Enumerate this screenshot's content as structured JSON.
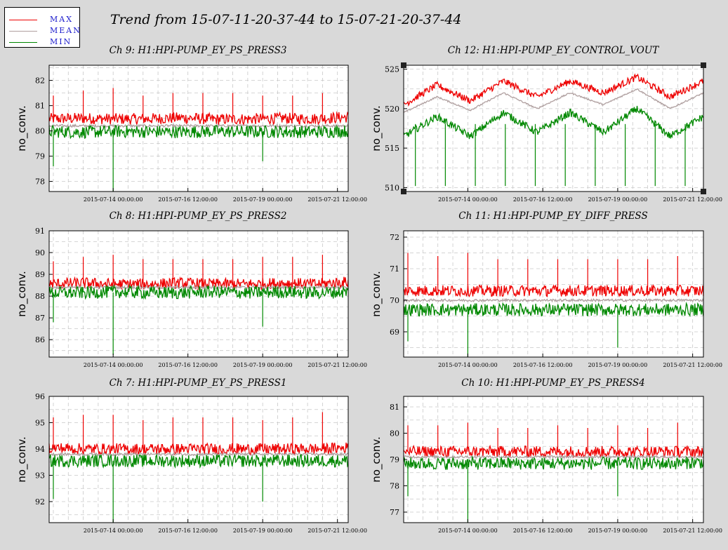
{
  "title": "Trend from 15-07-11-20-37-44 to 15-07-21-20-37-44",
  "legend": [
    {
      "label": "MAX",
      "color": "#ee0000"
    },
    {
      "label": "MEAN",
      "color": "#b0a0a0"
    },
    {
      "label": "MIN",
      "color": "#008800"
    }
  ],
  "colors": {
    "max": "#ee0000",
    "mean": "#b0a0a0",
    "min": "#008800",
    "plot_bg": "#ffffff",
    "page_bg": "#d9d9d9",
    "grid": "#c8c8c8"
  },
  "chart_data": [
    {
      "type": "line",
      "title": "Ch 9: H1:HPI-PUMP_EY_PS_PRESS3",
      "ylabel": "no_conv.",
      "xlim": [
        "2015-07-11 20:37:44",
        "2015-07-21 20:37:44"
      ],
      "ylim": [
        77.6,
        82.6
      ],
      "yticks": [
        "78",
        "79",
        "80",
        "81",
        "82"
      ],
      "xticks": [
        "2015-07-14 00:00:00",
        "2015-07-16 12:00:00",
        "2015-07-19 00:00:00",
        "2015-07-21 12:00:00"
      ],
      "series": [
        {
          "name": "MAX",
          "values": [
            80.48,
            80.5,
            80.47,
            80.48,
            80.52,
            80.46,
            80.47,
            80.5,
            80.48,
            80.55
          ]
        },
        {
          "name": "MEAN",
          "values": [
            80.2,
            80.2,
            80.2,
            80.2,
            80.2,
            80.2,
            80.2,
            80.2,
            80.2,
            80.2
          ]
        },
        {
          "name": "MIN",
          "values": [
            79.98,
            79.95,
            79.98,
            79.97,
            79.96,
            79.98,
            79.97,
            79.97,
            79.96,
            80.0
          ]
        }
      ],
      "spikes": [
        {
          "x": "2015-07-12 00:00:00",
          "series": "MAX",
          "value": 81.4
        },
        {
          "x": "2015-07-12 00:00:00",
          "series": "MIN",
          "value": 78.6
        },
        {
          "x": "2015-07-13 00:00:00",
          "series": "MAX",
          "value": 81.6
        },
        {
          "x": "2015-07-14 00:00:00",
          "series": "MAX",
          "value": 81.7
        },
        {
          "x": "2015-07-14 00:00:00",
          "series": "MIN",
          "value": 77.6
        },
        {
          "x": "2015-07-15 00:00:00",
          "series": "MAX",
          "value": 81.4
        },
        {
          "x": "2015-07-16 00:00:00",
          "series": "MAX",
          "value": 81.5
        },
        {
          "x": "2015-07-17 00:00:00",
          "series": "MAX",
          "value": 81.5
        },
        {
          "x": "2015-07-18 00:00:00",
          "series": "MAX",
          "value": 81.5
        },
        {
          "x": "2015-07-19 00:00:00",
          "series": "MAX",
          "value": 81.4
        },
        {
          "x": "2015-07-19 00:00:00",
          "series": "MIN",
          "value": 78.8
        },
        {
          "x": "2015-07-20 00:00:00",
          "series": "MAX",
          "value": 81.4
        },
        {
          "x": "2015-07-21 00:00:00",
          "series": "MAX",
          "value": 81.5
        }
      ]
    },
    {
      "type": "line",
      "title": "Ch 12: H1:HPI-PUMP_EY_CONTROL_VOUT",
      "ylabel": "no_conv.",
      "xlim": [
        "2015-07-11 20:37:44",
        "2015-07-21 20:37:44"
      ],
      "ylim": [
        509.5,
        525.5
      ],
      "yticks": [
        "510",
        "515",
        "520",
        "525"
      ],
      "xticks": [
        "2015-07-14 00:00:00",
        "2015-07-16 12:00:00",
        "2015-07-19 00:00:00",
        "2015-07-21 12:00:00"
      ],
      "series": [
        {
          "name": "MAX",
          "values": [
            520.5,
            523.0,
            521.0,
            523.5,
            521.5,
            523.5,
            522.0,
            524.0,
            521.5,
            523.5
          ]
        },
        {
          "name": "MEAN",
          "values": [
            519.5,
            521.5,
            519.8,
            522.0,
            520.0,
            522.0,
            520.5,
            522.5,
            520.0,
            522.0
          ]
        },
        {
          "name": "MIN",
          "values": [
            516.5,
            519.0,
            516.5,
            519.5,
            517.0,
            519.5,
            517.0,
            520.0,
            516.5,
            519.0
          ]
        }
      ],
      "spikes": [
        {
          "x": "2015-07-12 06:00:00",
          "series": "MIN",
          "value": 510.2
        },
        {
          "x": "2015-07-13 06:00:00",
          "series": "MIN",
          "value": 510.2
        },
        {
          "x": "2015-07-14 06:00:00",
          "series": "MIN",
          "value": 510.2
        },
        {
          "x": "2015-07-15 06:00:00",
          "series": "MIN",
          "value": 510.2
        },
        {
          "x": "2015-07-16 06:00:00",
          "series": "MIN",
          "value": 510.2
        },
        {
          "x": "2015-07-17 06:00:00",
          "series": "MIN",
          "value": 510.2
        },
        {
          "x": "2015-07-18 06:00:00",
          "series": "MIN",
          "value": 510.2
        },
        {
          "x": "2015-07-19 06:00:00",
          "series": "MIN",
          "value": 510.2
        },
        {
          "x": "2015-07-20 06:00:00",
          "series": "MIN",
          "value": 510.2
        },
        {
          "x": "2015-07-21 06:00:00",
          "series": "MIN",
          "value": 510.2
        }
      ]
    },
    {
      "type": "line",
      "title": "Ch 8: H1:HPI-PUMP_EY_PS_PRESS2",
      "ylabel": "no_conv.",
      "xlim": [
        "2015-07-11 20:37:44",
        "2015-07-21 20:37:44"
      ],
      "ylim": [
        85.2,
        91.0
      ],
      "yticks": [
        "86",
        "87",
        "88",
        "89",
        "90",
        "91"
      ],
      "xticks": [
        "2015-07-14 00:00:00",
        "2015-07-16 12:00:00",
        "2015-07-19 00:00:00",
        "2015-07-21 12:00:00"
      ],
      "series": [
        {
          "name": "MAX",
          "values": [
            88.55,
            88.6,
            88.55,
            88.55,
            88.6,
            88.55,
            88.55,
            88.6,
            88.55,
            88.65
          ]
        },
        {
          "name": "MEAN",
          "values": [
            88.4,
            88.4,
            88.4,
            88.4,
            88.4,
            88.4,
            88.4,
            88.4,
            88.4,
            88.4
          ]
        },
        {
          "name": "MIN",
          "values": [
            88.15,
            88.15,
            88.2,
            88.15,
            88.15,
            88.2,
            88.15,
            88.2,
            88.15,
            88.2
          ]
        }
      ],
      "spikes": [
        {
          "x": "2015-07-12 00:00:00",
          "series": "MAX",
          "value": 89.6
        },
        {
          "x": "2015-07-12 00:00:00",
          "series": "MIN",
          "value": 86.8
        },
        {
          "x": "2015-07-13 00:00:00",
          "series": "MAX",
          "value": 89.8
        },
        {
          "x": "2015-07-14 00:00:00",
          "series": "MAX",
          "value": 89.9
        },
        {
          "x": "2015-07-14 00:00:00",
          "series": "MIN",
          "value": 85.3
        },
        {
          "x": "2015-07-15 00:00:00",
          "series": "MAX",
          "value": 89.7
        },
        {
          "x": "2015-07-16 00:00:00",
          "series": "MAX",
          "value": 89.7
        },
        {
          "x": "2015-07-17 00:00:00",
          "series": "MAX",
          "value": 89.7
        },
        {
          "x": "2015-07-18 00:00:00",
          "series": "MAX",
          "value": 89.7
        },
        {
          "x": "2015-07-19 00:00:00",
          "series": "MAX",
          "value": 89.8
        },
        {
          "x": "2015-07-19 00:00:00",
          "series": "MIN",
          "value": 86.6
        },
        {
          "x": "2015-07-20 00:00:00",
          "series": "MAX",
          "value": 89.8
        },
        {
          "x": "2015-07-21 00:00:00",
          "series": "MAX",
          "value": 89.9
        }
      ]
    },
    {
      "type": "line",
      "title": "Ch 11: H1:HPI-PUMP_EY_DIFF_PRESS",
      "ylabel": "no_conv.",
      "xlim": [
        "2015-07-11 20:37:44",
        "2015-07-21 20:37:44"
      ],
      "ylim": [
        68.2,
        72.2
      ],
      "yticks": [
        "69",
        "70",
        "71",
        "72"
      ],
      "xticks": [
        "2015-07-14 00:00:00",
        "2015-07-16 12:00:00",
        "2015-07-19 00:00:00",
        "2015-07-21 12:00:00"
      ],
      "series": [
        {
          "name": "MAX",
          "values": [
            70.3,
            70.3,
            70.3,
            70.3,
            70.3,
            70.3,
            70.3,
            70.3,
            70.3,
            70.3
          ]
        },
        {
          "name": "MEAN",
          "values": [
            70.0,
            70.0,
            70.0,
            70.0,
            70.0,
            70.0,
            70.0,
            70.0,
            70.0,
            70.0
          ]
        },
        {
          "name": "MIN",
          "values": [
            69.7,
            69.7,
            69.7,
            69.7,
            69.7,
            69.7,
            69.7,
            69.7,
            69.7,
            69.7
          ]
        }
      ],
      "spikes": [
        {
          "x": "2015-07-12 00:00:00",
          "series": "MAX",
          "value": 71.5
        },
        {
          "x": "2015-07-12 00:00:00",
          "series": "MIN",
          "value": 68.7
        },
        {
          "x": "2015-07-13 00:00:00",
          "series": "MAX",
          "value": 71.4
        },
        {
          "x": "2015-07-14 00:00:00",
          "series": "MAX",
          "value": 71.5
        },
        {
          "x": "2015-07-14 00:00:00",
          "series": "MIN",
          "value": 68.2
        },
        {
          "x": "2015-07-15 00:00:00",
          "series": "MAX",
          "value": 71.3
        },
        {
          "x": "2015-07-16 00:00:00",
          "series": "MAX",
          "value": 71.3
        },
        {
          "x": "2015-07-17 00:00:00",
          "series": "MAX",
          "value": 71.3
        },
        {
          "x": "2015-07-18 00:00:00",
          "series": "MAX",
          "value": 71.3
        },
        {
          "x": "2015-07-19 00:00:00",
          "series": "MAX",
          "value": 71.3
        },
        {
          "x": "2015-07-19 00:00:00",
          "series": "MIN",
          "value": 68.5
        },
        {
          "x": "2015-07-20 00:00:00",
          "series": "MAX",
          "value": 71.3
        },
        {
          "x": "2015-07-21 00:00:00",
          "series": "MAX",
          "value": 71.4
        }
      ]
    },
    {
      "type": "line",
      "title": "Ch 7: H1:HPI-PUMP_EY_PS_PRESS1",
      "ylabel": "no_conv.",
      "xlim": [
        "2015-07-11 20:37:44",
        "2015-07-21 20:37:44"
      ],
      "ylim": [
        91.2,
        96.0
      ],
      "yticks": [
        "92",
        "93",
        "94",
        "95",
        "96"
      ],
      "xticks": [
        "2015-07-14 00:00:00",
        "2015-07-16 12:00:00",
        "2015-07-19 00:00:00",
        "2015-07-21 12:00:00"
      ],
      "series": [
        {
          "name": "MAX",
          "values": [
            94.05,
            94.0,
            94.0,
            94.0,
            94.0,
            94.0,
            94.0,
            94.0,
            94.0,
            94.05
          ]
        },
        {
          "name": "MEAN",
          "values": [
            93.8,
            93.8,
            93.8,
            93.8,
            93.8,
            93.8,
            93.8,
            93.8,
            93.8,
            93.8
          ]
        },
        {
          "name": "MIN",
          "values": [
            93.55,
            93.55,
            93.55,
            93.55,
            93.55,
            93.55,
            93.55,
            93.55,
            93.55,
            93.55
          ]
        }
      ],
      "spikes": [
        {
          "x": "2015-07-12 00:00:00",
          "series": "MAX",
          "value": 95.2
        },
        {
          "x": "2015-07-12 00:00:00",
          "series": "MIN",
          "value": 92.1
        },
        {
          "x": "2015-07-13 00:00:00",
          "series": "MAX",
          "value": 95.3
        },
        {
          "x": "2015-07-14 00:00:00",
          "series": "MAX",
          "value": 95.3
        },
        {
          "x": "2015-07-14 00:00:00",
          "series": "MIN",
          "value": 91.2
        },
        {
          "x": "2015-07-15 00:00:00",
          "series": "MAX",
          "value": 95.1
        },
        {
          "x": "2015-07-16 00:00:00",
          "series": "MAX",
          "value": 95.2
        },
        {
          "x": "2015-07-17 00:00:00",
          "series": "MAX",
          "value": 95.2
        },
        {
          "x": "2015-07-18 00:00:00",
          "series": "MAX",
          "value": 95.2
        },
        {
          "x": "2015-07-19 00:00:00",
          "series": "MAX",
          "value": 95.1
        },
        {
          "x": "2015-07-19 00:00:00",
          "series": "MIN",
          "value": 92.0
        },
        {
          "x": "2015-07-20 00:00:00",
          "series": "MAX",
          "value": 95.2
        },
        {
          "x": "2015-07-21 00:00:00",
          "series": "MAX",
          "value": 95.4
        }
      ]
    },
    {
      "type": "line",
      "title": "Ch 10: H1:HPI-PUMP_EY_PS_PRESS4",
      "ylabel": "no_conv.",
      "xlim": [
        "2015-07-11 20:37:44",
        "2015-07-21 20:37:44"
      ],
      "ylim": [
        76.6,
        81.4
      ],
      "yticks": [
        "77",
        "78",
        "79",
        "80",
        "81"
      ],
      "xticks": [
        "2015-07-14 00:00:00",
        "2015-07-16 12:00:00",
        "2015-07-19 00:00:00",
        "2015-07-21 12:00:00"
      ],
      "series": [
        {
          "name": "MAX",
          "values": [
            79.3,
            79.3,
            79.3,
            79.3,
            79.3,
            79.3,
            79.3,
            79.3,
            79.3,
            79.3
          ]
        },
        {
          "name": "MEAN",
          "values": [
            79.1,
            79.1,
            79.1,
            79.1,
            79.1,
            79.1,
            79.1,
            79.1,
            79.1,
            79.1
          ]
        },
        {
          "name": "MIN",
          "values": [
            78.85,
            78.85,
            78.85,
            78.85,
            78.85,
            78.85,
            78.85,
            78.85,
            78.85,
            78.9
          ]
        }
      ],
      "spikes": [
        {
          "x": "2015-07-12 00:00:00",
          "series": "MAX",
          "value": 80.3
        },
        {
          "x": "2015-07-12 00:00:00",
          "series": "MIN",
          "value": 77.6
        },
        {
          "x": "2015-07-13 00:00:00",
          "series": "MAX",
          "value": 80.3
        },
        {
          "x": "2015-07-14 00:00:00",
          "series": "MAX",
          "value": 80.4
        },
        {
          "x": "2015-07-14 00:00:00",
          "series": "MIN",
          "value": 76.6
        },
        {
          "x": "2015-07-15 00:00:00",
          "series": "MAX",
          "value": 80.2
        },
        {
          "x": "2015-07-16 00:00:00",
          "series": "MAX",
          "value": 80.2
        },
        {
          "x": "2015-07-17 00:00:00",
          "series": "MAX",
          "value": 80.3
        },
        {
          "x": "2015-07-18 00:00:00",
          "series": "MAX",
          "value": 80.2
        },
        {
          "x": "2015-07-19 00:00:00",
          "series": "MAX",
          "value": 80.3
        },
        {
          "x": "2015-07-19 00:00:00",
          "series": "MIN",
          "value": 77.6
        },
        {
          "x": "2015-07-20 00:00:00",
          "series": "MAX",
          "value": 80.2
        },
        {
          "x": "2015-07-21 00:00:00",
          "series": "MAX",
          "value": 80.4
        }
      ]
    }
  ]
}
